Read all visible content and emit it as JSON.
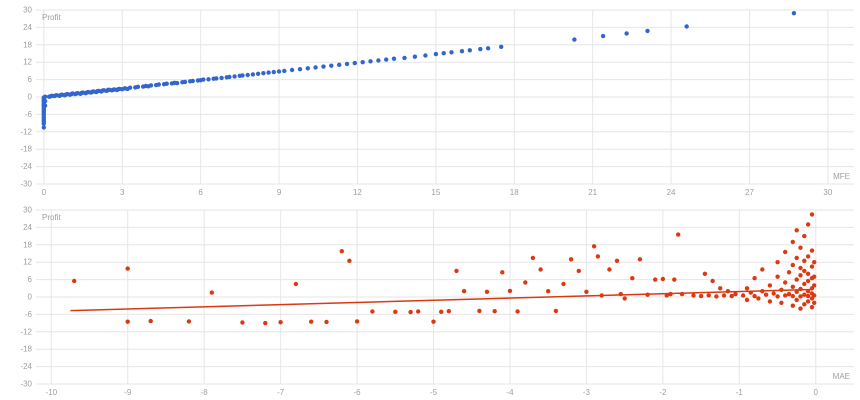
{
  "page": {
    "background": "#ffffff"
  },
  "chart_data": [
    {
      "type": "scatter",
      "series_label": "Profit",
      "xlabel": "MFE",
      "ylabel": "Profit",
      "xlim": [
        -0.3,
        31.0
      ],
      "ylim": [
        -30,
        30
      ],
      "xticks": [
        0,
        3,
        6,
        9,
        12,
        15,
        18,
        21,
        24,
        27,
        30
      ],
      "yticks": [
        30,
        24,
        18,
        12,
        6,
        0,
        -6,
        -12,
        -18,
        -24,
        -30
      ],
      "color": "#3366cc",
      "grid_color": "#e6e6e6",
      "tick_color": "#9e9e9e",
      "legend_position": "none",
      "points": [
        [
          0,
          -10.5
        ],
        [
          0,
          -9.2
        ],
        [
          0,
          -8.4
        ],
        [
          0,
          -7.8
        ],
        [
          0,
          -7.1
        ],
        [
          0,
          -6.3
        ],
        [
          0,
          -5.6
        ],
        [
          0,
          -5
        ],
        [
          0,
          -4.4
        ],
        [
          0,
          -3.8
        ],
        [
          0,
          -3.2
        ],
        [
          0,
          -2.7
        ],
        [
          0,
          -2.1
        ],
        [
          0,
          -1.6
        ],
        [
          0,
          -1.1
        ],
        [
          0,
          -0.6
        ],
        [
          0,
          -0.2
        ],
        [
          0.05,
          0.1
        ],
        [
          0.05,
          -1.4
        ],
        [
          0.05,
          -3
        ],
        [
          0.2,
          0.1
        ],
        [
          0.25,
          0.2
        ],
        [
          0.3,
          0.4
        ],
        [
          0.4,
          0.3
        ],
        [
          0.45,
          0.5
        ],
        [
          0.5,
          0.6
        ],
        [
          0.6,
          0.4
        ],
        [
          0.65,
          0.7
        ],
        [
          0.7,
          0.8
        ],
        [
          0.8,
          0.6
        ],
        [
          0.85,
          0.9
        ],
        [
          0.9,
          1.0
        ],
        [
          1.0,
          0.8
        ],
        [
          1.05,
          1.0
        ],
        [
          1.1,
          1.2
        ],
        [
          1.2,
          1.0
        ],
        [
          1.25,
          1.2
        ],
        [
          1.3,
          1.3
        ],
        [
          1.4,
          1.1
        ],
        [
          1.45,
          1.4
        ],
        [
          1.5,
          1.5
        ],
        [
          1.6,
          1.3
        ],
        [
          1.65,
          1.6
        ],
        [
          1.7,
          1.7
        ],
        [
          1.8,
          1.5
        ],
        [
          1.85,
          1.8
        ],
        [
          1.9,
          1.9
        ],
        [
          2.0,
          1.7
        ],
        [
          2.05,
          2.0
        ],
        [
          2.1,
          2.1
        ],
        [
          2.2,
          1.9
        ],
        [
          2.25,
          2.2
        ],
        [
          2.3,
          2.3
        ],
        [
          2.4,
          2.1
        ],
        [
          2.45,
          2.4
        ],
        [
          2.5,
          2.5
        ],
        [
          2.6,
          2.3
        ],
        [
          2.65,
          2.5
        ],
        [
          2.7,
          2.6
        ],
        [
          2.8,
          2.4
        ],
        [
          2.85,
          2.7
        ],
        [
          2.9,
          2.8
        ],
        [
          3.0,
          2.7
        ],
        [
          3.1,
          3.0
        ],
        [
          3.2,
          2.8
        ],
        [
          3.3,
          3.2
        ],
        [
          3.5,
          3.3
        ],
        [
          3.6,
          3.5
        ],
        [
          3.8,
          3.6
        ],
        [
          3.9,
          3.8
        ],
        [
          4.0,
          3.7
        ],
        [
          4.1,
          4.0
        ],
        [
          4.3,
          4.1
        ],
        [
          4.4,
          4.3
        ],
        [
          4.6,
          4.4
        ],
        [
          4.7,
          4.6
        ],
        [
          4.9,
          4.7
        ],
        [
          5.0,
          4.9
        ],
        [
          5.1,
          4.8
        ],
        [
          5.3,
          5.1
        ],
        [
          5.4,
          5.2
        ],
        [
          5.6,
          5.4
        ],
        [
          5.7,
          5.5
        ],
        [
          5.9,
          5.7
        ],
        [
          6.0,
          5.8
        ],
        [
          6.1,
          6.0
        ],
        [
          6.3,
          6.1
        ],
        [
          6.5,
          6.3
        ],
        [
          6.6,
          6.4
        ],
        [
          6.8,
          6.6
        ],
        [
          7.0,
          6.8
        ],
        [
          7.1,
          6.9
        ],
        [
          7.3,
          7.1
        ],
        [
          7.5,
          7.3
        ],
        [
          7.6,
          7.4
        ],
        [
          7.8,
          7.6
        ],
        [
          8.0,
          7.8
        ],
        [
          8.2,
          8.0
        ],
        [
          8.4,
          8.2
        ],
        [
          8.6,
          8.4
        ],
        [
          8.8,
          8.6
        ],
        [
          9.0,
          8.8
        ],
        [
          9.2,
          9.0
        ],
        [
          9.5,
          9.3
        ],
        [
          9.8,
          9.6
        ],
        [
          10.1,
          9.9
        ],
        [
          10.4,
          10.2
        ],
        [
          10.7,
          10.5
        ],
        [
          11.0,
          10.8
        ],
        [
          11.3,
          11.1
        ],
        [
          11.6,
          11.4
        ],
        [
          11.9,
          11.7
        ],
        [
          12.2,
          12.0
        ],
        [
          12.5,
          12.3
        ],
        [
          12.8,
          12.6
        ],
        [
          13.1,
          12.9
        ],
        [
          13.4,
          13.2
        ],
        [
          13.8,
          13.5
        ],
        [
          14.2,
          13.9
        ],
        [
          14.6,
          14.3
        ],
        [
          15.0,
          14.8
        ],
        [
          15.3,
          15.1
        ],
        [
          15.6,
          15.4
        ],
        [
          16.0,
          15.8
        ],
        [
          16.3,
          16.1
        ],
        [
          16.7,
          16.5
        ],
        [
          17.0,
          16.8
        ],
        [
          17.5,
          17.3
        ],
        [
          20.3,
          19.8
        ],
        [
          21.4,
          21.0
        ],
        [
          22.3,
          21.9
        ],
        [
          23.1,
          22.8
        ],
        [
          24.6,
          24.3
        ],
        [
          28.7,
          28.9
        ]
      ]
    },
    {
      "type": "scatter",
      "series_label": "Profit",
      "xlabel": "MAE",
      "ylabel": "Profit",
      "xlim": [
        -10.2,
        0.5
      ],
      "ylim": [
        -30,
        30
      ],
      "xticks": [
        -10,
        -9,
        -8,
        -7,
        -6,
        -5,
        -4,
        -3,
        -2,
        -1,
        0
      ],
      "yticks": [
        30,
        24,
        18,
        12,
        6,
        0,
        -6,
        -12,
        -18,
        -24,
        -30
      ],
      "color": "#dc3912",
      "grid_color": "#e6e6e6",
      "tick_color": "#9e9e9e",
      "legend_position": "none",
      "trendline": {
        "x1": -9.75,
        "y1": -4.7,
        "x2": -0.05,
        "y2": 2.6,
        "color": "#dc3912"
      },
      "points": [
        [
          -9.7,
          5.5
        ],
        [
          -9.0,
          9.8
        ],
        [
          -9.0,
          -8.5
        ],
        [
          -8.7,
          -8.3
        ],
        [
          -8.2,
          -8.4
        ],
        [
          -7.9,
          1.5
        ],
        [
          -7.5,
          -8.8
        ],
        [
          -7.2,
          -9.0
        ],
        [
          -7.0,
          -8.7
        ],
        [
          -6.8,
          4.5
        ],
        [
          -6.6,
          -8.5
        ],
        [
          -6.4,
          -8.6
        ],
        [
          -6.2,
          15.8
        ],
        [
          -6.1,
          12.5
        ],
        [
          -6.0,
          -8.4
        ],
        [
          -5.8,
          -5.0
        ],
        [
          -5.5,
          -5.1
        ],
        [
          -5.3,
          -5.2
        ],
        [
          -5.2,
          -5.0
        ],
        [
          -5.0,
          -8.5
        ],
        [
          -4.9,
          -5.1
        ],
        [
          -4.8,
          -4.9
        ],
        [
          -4.7,
          9.0
        ],
        [
          -4.6,
          2.0
        ],
        [
          -4.4,
          -4.8
        ],
        [
          -4.3,
          1.8
        ],
        [
          -4.2,
          -4.9
        ],
        [
          -4.1,
          8.5
        ],
        [
          -4.0,
          2.1
        ],
        [
          -3.9,
          -5.0
        ],
        [
          -3.8,
          5.0
        ],
        [
          -3.7,
          13.5
        ],
        [
          -3.6,
          9.5
        ],
        [
          -3.5,
          2.0
        ],
        [
          -3.4,
          -4.8
        ],
        [
          -3.3,
          4.5
        ],
        [
          -3.2,
          13.0
        ],
        [
          -3.1,
          9.0
        ],
        [
          -3.0,
          1.8
        ],
        [
          -2.9,
          17.5
        ],
        [
          -2.85,
          14.0
        ],
        [
          -2.8,
          0.5
        ],
        [
          -2.7,
          9.5
        ],
        [
          -2.6,
          12.5
        ],
        [
          -2.55,
          1.0
        ],
        [
          -2.5,
          -0.5
        ],
        [
          -2.4,
          6.5
        ],
        [
          -2.3,
          13.0
        ],
        [
          -2.2,
          0.8
        ],
        [
          -2.1,
          6.0
        ],
        [
          -2.0,
          6.2
        ],
        [
          -1.95,
          0.5
        ],
        [
          -1.9,
          1.0
        ],
        [
          -1.85,
          6.0
        ],
        [
          -1.8,
          21.5
        ],
        [
          -1.75,
          1.0
        ],
        [
          -1.6,
          0.5
        ],
        [
          -1.5,
          0.3
        ],
        [
          -1.45,
          8.0
        ],
        [
          -1.4,
          0.6
        ],
        [
          -1.35,
          5.5
        ],
        [
          -1.3,
          0.2
        ],
        [
          -1.25,
          3.0
        ],
        [
          -1.2,
          0.5
        ],
        [
          -1.15,
          2.0
        ],
        [
          -1.1,
          0.3
        ],
        [
          -1.05,
          1.0
        ],
        [
          -0.95,
          0.5
        ],
        [
          -0.9,
          -1.0
        ],
        [
          -0.9,
          3.0
        ],
        [
          -0.85,
          1.5
        ],
        [
          -0.8,
          0.3
        ],
        [
          -0.8,
          6.5
        ],
        [
          -0.75,
          -0.5
        ],
        [
          -0.7,
          2.0
        ],
        [
          -0.7,
          9.5
        ],
        [
          -0.65,
          0.8
        ],
        [
          -0.6,
          -1.5
        ],
        [
          -0.6,
          4.0
        ],
        [
          -0.55,
          1.2
        ],
        [
          -0.5,
          0.2
        ],
        [
          -0.5,
          7.0
        ],
        [
          -0.5,
          12.0
        ],
        [
          -0.45,
          -2.0
        ],
        [
          -0.45,
          2.5
        ],
        [
          -0.4,
          0.5
        ],
        [
          -0.4,
          5.0
        ],
        [
          -0.4,
          15.5
        ],
        [
          -0.35,
          1.0
        ],
        [
          -0.35,
          8.5
        ],
        [
          -0.3,
          -3.0
        ],
        [
          -0.3,
          0.3
        ],
        [
          -0.3,
          3.5
        ],
        [
          -0.3,
          11.0
        ],
        [
          -0.3,
          19.0
        ],
        [
          -0.25,
          -1.0
        ],
        [
          -0.25,
          1.8
        ],
        [
          -0.25,
          6.0
        ],
        [
          -0.25,
          13.5
        ],
        [
          -0.25,
          23.0
        ],
        [
          -0.2,
          0.2
        ],
        [
          -0.2,
          -4.0
        ],
        [
          -0.2,
          2.8
        ],
        [
          -0.2,
          7.5
        ],
        [
          -0.2,
          10.0
        ],
        [
          -0.2,
          17.0
        ],
        [
          -0.15,
          -2.5
        ],
        [
          -0.15,
          0.8
        ],
        [
          -0.15,
          4.5
        ],
        [
          -0.15,
          9.0
        ],
        [
          -0.15,
          12.5
        ],
        [
          -0.15,
          21.0
        ],
        [
          -0.1,
          -1.5
        ],
        [
          -0.1,
          0.3
        ],
        [
          -0.1,
          2.0
        ],
        [
          -0.1,
          5.5
        ],
        [
          -0.1,
          8.0
        ],
        [
          -0.1,
          14.0
        ],
        [
          -0.1,
          25.0
        ],
        [
          -0.05,
          -3.5
        ],
        [
          -0.05,
          -0.5
        ],
        [
          -0.05,
          1.2
        ],
        [
          -0.05,
          3.0
        ],
        [
          -0.05,
          6.5
        ],
        [
          -0.05,
          10.5
        ],
        [
          -0.05,
          16.0
        ],
        [
          -0.05,
          28.5
        ],
        [
          -0.02,
          0.5
        ],
        [
          -0.02,
          -2.0
        ],
        [
          -0.02,
          4.0
        ],
        [
          -0.02,
          7.0
        ],
        [
          -0.02,
          12.0
        ]
      ]
    }
  ]
}
